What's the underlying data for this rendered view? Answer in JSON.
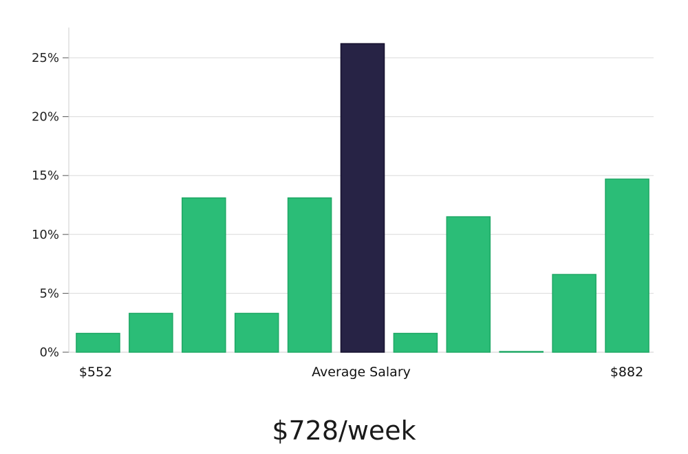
{
  "chart_data": {
    "type": "bar",
    "categories": [
      "1",
      "2",
      "3",
      "4",
      "5",
      "6",
      "7",
      "8",
      "9",
      "10",
      "11"
    ],
    "values": [
      1.6,
      3.3,
      13.1,
      3.3,
      13.1,
      26.2,
      1.6,
      11.5,
      0.05,
      6.6,
      14.7
    ],
    "highlight_index": 5,
    "ylim": [
      0,
      27.5
    ],
    "yticks": [
      0,
      5,
      10,
      15,
      20,
      25
    ],
    "ytick_labels": [
      "0%",
      "5%",
      "10%",
      "15%",
      "20%",
      "25%"
    ],
    "x_labels": {
      "left": "$552",
      "center": "Average Salary",
      "right": "$882"
    },
    "grid": true,
    "colors": {
      "bar": "#2bbd77",
      "bar_edge": "#1fa865",
      "highlight": "#272345",
      "highlight_edge": "#15112e",
      "grid": "#d9d9d9",
      "axis": "#cccccc"
    }
  },
  "salary_label": "$728/week"
}
